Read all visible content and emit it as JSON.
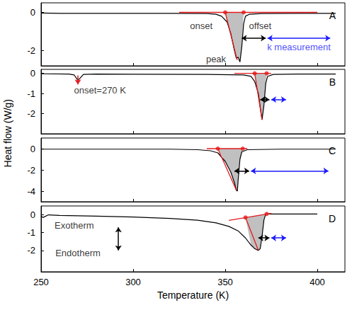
{
  "chart_data": [
    {
      "type": "line",
      "title": "A",
      "y_label": "Heat flow (W/g)",
      "xlim": [
        250,
        415
      ],
      "xticks": [
        250,
        300,
        350,
        400
      ],
      "ylim": [
        -2.8,
        0.5
      ],
      "yticks": [
        -2,
        0
      ],
      "tick_labels": "y",
      "curve": {
        "color": "#000000",
        "x": [
          250,
          260,
          280,
          300,
          320,
          340,
          345,
          348,
          351,
          353,
          355,
          356,
          357,
          358,
          359,
          360,
          361,
          363,
          370,
          390,
          410
        ],
        "values": [
          -0.03,
          -0.05,
          -0.05,
          -0.05,
          -0.05,
          -0.06,
          -0.1,
          -0.2,
          -0.5,
          -1.1,
          -2.0,
          -2.4,
          -2.35,
          -2.6,
          -1.8,
          -0.6,
          -0.2,
          -0.1,
          -0.06,
          -0.05,
          -0.05
        ]
      },
      "construction": {
        "color": "#e41a1c",
        "lines": [
          [
            [
              325,
              0
            ],
            [
              400,
              0
            ]
          ],
          [
            [
              350,
              0
            ],
            [
              356.5,
              -2.5
            ]
          ]
        ],
        "points": [
          [
            350,
            0
          ],
          [
            360,
            0
          ]
        ]
      },
      "fill": {
        "color": "#c0c0c0"
      },
      "arrows": [
        {
          "from": [
            359,
            -1.35
          ],
          "to": [
            372,
            -1.35
          ],
          "color": "#000000",
          "marker": "double_arrow"
        },
        {
          "from": [
            373,
            -1.35
          ],
          "to": [
            407,
            -1.35
          ],
          "color": "#1a1aff",
          "marker": "double_arrow"
        }
      ],
      "annotations": [
        {
          "text": "onset",
          "x": 337,
          "y": -0.7,
          "color": "#000000"
        },
        {
          "text": "offset",
          "x": 369,
          "y": -0.7,
          "color": "#000000"
        },
        {
          "text": "peak",
          "x": 345,
          "y": -2.45,
          "color": "#000000"
        },
        {
          "text": "k measurement",
          "x": 390,
          "y": -1.8,
          "color": "#1a1aff"
        }
      ]
    },
    {
      "type": "line",
      "title": "B",
      "xlim": [
        250,
        415
      ],
      "xticks": [
        250,
        300,
        350,
        400
      ],
      "ylim": [
        -3,
        0.2
      ],
      "yticks": [
        -2,
        -1,
        0
      ],
      "tick_labels": "y",
      "curve": {
        "color": "#000000",
        "x": [
          250,
          265,
          268,
          270,
          271,
          273,
          280,
          300,
          340,
          360,
          364,
          366,
          368,
          369.5,
          370,
          371,
          372,
          373,
          376,
          390,
          410
        ],
        "values": [
          -0.02,
          -0.03,
          -0.08,
          -0.35,
          -0.25,
          -0.05,
          -0.03,
          -0.04,
          -0.05,
          -0.08,
          -0.15,
          -0.4,
          -1.0,
          -2.0,
          -2.3,
          -1.6,
          -0.5,
          -0.15,
          -0.05,
          -0.03,
          -0.03
        ]
      },
      "construction": {
        "color": "#e41a1c",
        "lines": [
          [
            [
              355,
              0
            ],
            [
              375,
              0
            ]
          ],
          [
            [
              366,
              0
            ],
            [
              370,
              -2.3
            ]
          ]
        ],
        "points": [
          [
            366,
            0
          ],
          [
            372.5,
            0
          ]
        ]
      },
      "fill": {
        "color": "#c0c0c0"
      },
      "arrows": [
        {
          "from": [
            270,
            -0.1
          ],
          "to": [
            270,
            -0.55
          ],
          "color": "#e41a1c",
          "marker": "arrow"
        },
        {
          "from": [
            369,
            -1.3
          ],
          "to": [
            374,
            -1.3
          ],
          "color": "#000000",
          "marker": "double_arrow"
        },
        {
          "from": [
            375,
            -1.3
          ],
          "to": [
            383,
            -1.3
          ],
          "color": "#1a1aff",
          "marker": "double_arrow"
        }
      ],
      "annotations": [
        {
          "text": "onset=270 K",
          "x": 282,
          "y": -0.85,
          "color": "#000000"
        }
      ]
    },
    {
      "type": "line",
      "title": "C",
      "xlim": [
        250,
        415
      ],
      "xticks": [
        250,
        300,
        350,
        400
      ],
      "ylim": [
        -5,
        1
      ],
      "yticks": [
        -4,
        -2,
        0
      ],
      "tick_labels": "y",
      "curve": {
        "color": "#000000",
        "x": [
          250,
          280,
          320,
          335,
          342,
          346,
          350,
          353,
          355,
          356,
          356.6,
          357,
          358,
          359,
          362,
          380,
          410
        ],
        "values": [
          -0.05,
          -0.05,
          -0.05,
          -0.1,
          -0.2,
          -0.4,
          -1.2,
          -2.2,
          -3.2,
          -3.9,
          -4.0,
          -3.0,
          -1.0,
          -0.3,
          -0.1,
          -0.05,
          -0.05
        ]
      },
      "construction": {
        "color": "#e41a1c",
        "lines": [
          [
            [
              340,
              0
            ],
            [
              362,
              0
            ]
          ],
          [
            [
              346,
              0
            ],
            [
              356,
              -3.9
            ]
          ]
        ],
        "points": [
          [
            346,
            0
          ],
          [
            359.5,
            0
          ]
        ]
      },
      "fill": {
        "color": "#c0c0c0"
      },
      "arrows": [
        {
          "from": [
            355,
            -2.1
          ],
          "to": [
            363,
            -2.1
          ],
          "color": "#000000",
          "marker": "double_arrow"
        },
        {
          "from": [
            364,
            -2.1
          ],
          "to": [
            406,
            -2.1
          ],
          "color": "#1a1aff",
          "marker": "double_arrow"
        }
      ],
      "annotations": []
    },
    {
      "type": "line",
      "title": "D",
      "x_label": "Temperature (K)",
      "xlim": [
        250,
        415
      ],
      "xticks": [
        250,
        300,
        350,
        400
      ],
      "ylim": [
        -3.2,
        0.5
      ],
      "yticks": [
        -2,
        -1,
        0
      ],
      "curve": {
        "color": "#000000",
        "x": [
          250,
          251,
          254,
          260,
          280,
          300,
          320,
          335,
          345,
          352,
          357,
          361,
          364,
          366,
          368,
          369,
          370,
          371,
          372,
          375,
          385,
          400
        ],
        "values": [
          -0.05,
          -0.15,
          0.0,
          -0.03,
          -0.07,
          -0.12,
          -0.2,
          -0.3,
          -0.45,
          -0.65,
          -0.9,
          -1.3,
          -1.7,
          -1.9,
          -2.0,
          -1.9,
          -1.2,
          -0.3,
          0.05,
          0.05,
          0.05,
          0.05
        ]
      },
      "construction": {
        "color": "#e41a1c",
        "lines": [
          [
            [
              352,
              -0.31
            ],
            [
              375,
              0.09
            ]
          ],
          [
            [
              361,
              -0.15
            ],
            [
              368,
              -2.0
            ]
          ]
        ],
        "points": [
          [
            361,
            -0.15
          ],
          [
            372.5,
            0.05
          ]
        ]
      },
      "fill": {
        "color": "#c0c0c0"
      },
      "arrows": [
        {
          "from": [
            292,
            -0.7
          ],
          "to": [
            292,
            -2.0
          ],
          "color": "#000000",
          "marker": "double_arrow"
        },
        {
          "from": [
            368,
            -1.3
          ],
          "to": [
            374,
            -1.3
          ],
          "color": "#000000",
          "marker": "double_arrow"
        },
        {
          "from": [
            375,
            -1.3
          ],
          "to": [
            383,
            -1.3
          ],
          "color": "#1a1aff",
          "marker": "double_arrow"
        }
      ],
      "annotations": [
        {
          "text": "Exotherm",
          "x": 268,
          "y": -0.6,
          "color": "#000000"
        },
        {
          "text": "Endotherm",
          "x": 270,
          "y": -2.15,
          "color": "#000000"
        }
      ]
    }
  ]
}
